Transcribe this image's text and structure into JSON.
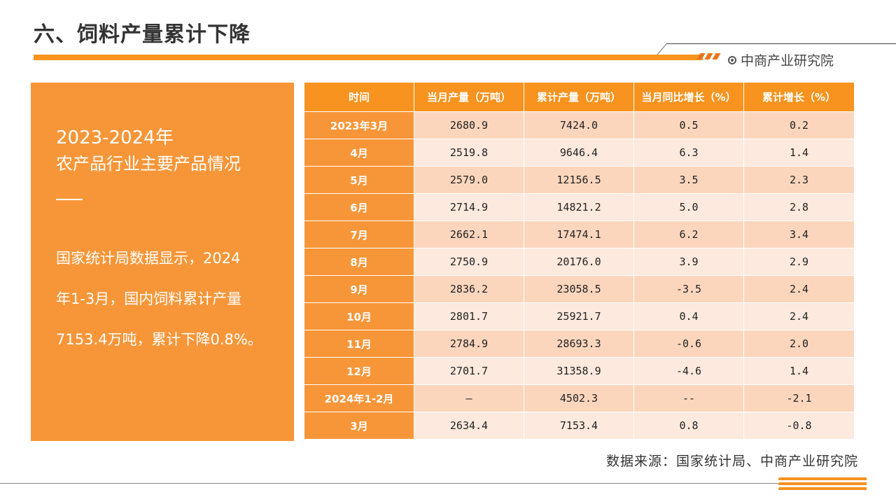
{
  "header": {
    "title": "六、饲料产量累计下降",
    "brand": "中商产业研究院"
  },
  "left_panel": {
    "year": "2023-2024年",
    "subtitle": "农产品行业主要产品情况",
    "body_line1": "国家统计局数据显示，2024",
    "body_line2": "年1-3月，国内饲料累计产量",
    "body_line3": "7153.4万吨，累计下降0.8%。"
  },
  "table": {
    "headers": [
      "时间",
      "当月产量（万吨）",
      "累计产量（万吨）",
      "当月同比增长（%）",
      "累计增长（%）"
    ],
    "rows": [
      [
        "2023年3月",
        "2680.9",
        "7424.0",
        "0.5",
        "0.2"
      ],
      [
        "4月",
        "2519.8",
        "9646.4",
        "6.3",
        "1.4"
      ],
      [
        "5月",
        "2579.0",
        "12156.5",
        "3.5",
        "2.3"
      ],
      [
        "6月",
        "2714.9",
        "14821.2",
        "5.0",
        "2.8"
      ],
      [
        "7月",
        "2662.1",
        "17474.1",
        "6.2",
        "3.4"
      ],
      [
        "8月",
        "2750.9",
        "20176.0",
        "3.9",
        "2.9"
      ],
      [
        "9月",
        "2836.2",
        "23058.5",
        "-3.5",
        "2.4"
      ],
      [
        "10月",
        "2801.7",
        "25921.7",
        "0.4",
        "2.4"
      ],
      [
        "11月",
        "2784.9",
        "28693.3",
        "-0.6",
        "2.0"
      ],
      [
        "12月",
        "2701.7",
        "31358.9",
        "-4.6",
        "1.4"
      ],
      [
        "2024年1-2月",
        "—",
        "4502.3",
        "--",
        "-2.1"
      ],
      [
        "3月",
        "2634.4",
        "7153.4",
        "0.8",
        "-0.8"
      ]
    ]
  },
  "footer": {
    "source": "数据来源：国家统计局、中商产业研究院"
  },
  "colors": {
    "accent": "#f7931e",
    "panel": "#f79638",
    "row_dark": "#fbd6bd",
    "row_light": "#fde9dd"
  }
}
